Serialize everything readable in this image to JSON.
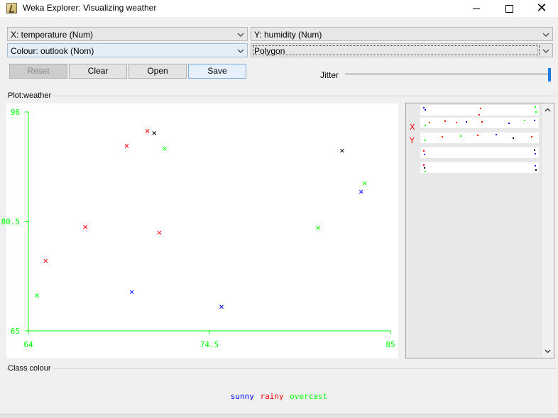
{
  "window": {
    "title": "Weka Explorer: Visualizing weather"
  },
  "controls": {
    "x_axis": "X: temperature (Num)",
    "y_axis": "Y: humidity (Num)",
    "colour": "Colour: outlook (Nom)",
    "shape": "Polygon"
  },
  "buttons": {
    "reset": "Reset",
    "clear": "Clear",
    "open": "Open",
    "save": "Save"
  },
  "jitter": {
    "label": "Jitter",
    "value_fraction": 1.0
  },
  "plot_panel_label": "Plot:weather",
  "class_colour_label": "Class colour",
  "matrix_labels": {
    "x": "X",
    "y": "Y"
  },
  "legend": [
    {
      "label": "sunny",
      "color": "#0000ff"
    },
    {
      "label": "rainy",
      "color": "#ff0000"
    },
    {
      "label": "overcast",
      "color": "#00ff00"
    }
  ],
  "chart_data": {
    "type": "scatter",
    "xlabel": "",
    "ylabel": "",
    "xlim": [
      64,
      85
    ],
    "ylim": [
      65,
      96
    ],
    "x_ticks": [
      "64",
      "74.5",
      "85"
    ],
    "y_ticks": [
      "96",
      "80.5",
      "65"
    ],
    "axis_color": "#00ff00",
    "marker": "x",
    "points": [
      {
        "x": 64.5,
        "y": 70,
        "color": "#00ff00"
      },
      {
        "x": 65.0,
        "y": 74.9,
        "color": "#ff0000"
      },
      {
        "x": 67.3,
        "y": 79.7,
        "color": "#ff0000"
      },
      {
        "x": 69.7,
        "y": 91.2,
        "color": "#ff0000"
      },
      {
        "x": 70.0,
        "y": 70.5,
        "color": "#0000ff"
      },
      {
        "x": 70.9,
        "y": 93.3,
        "color": "#ff0000"
      },
      {
        "x": 71.3,
        "y": 93.0,
        "color": "#000000"
      },
      {
        "x": 71.6,
        "y": 78.9,
        "color": "#ff0000"
      },
      {
        "x": 71.9,
        "y": 90.8,
        "color": "#00ff00"
      },
      {
        "x": 75.2,
        "y": 68.4,
        "color": "#0000ff"
      },
      {
        "x": 80.8,
        "y": 79.6,
        "color": "#00ff00"
      },
      {
        "x": 82.2,
        "y": 90.5,
        "color": "#000000"
      },
      {
        "x": 83.3,
        "y": 84.7,
        "color": "#0000ff"
      },
      {
        "x": 83.5,
        "y": 85.9,
        "color": "#00ff00"
      }
    ]
  }
}
